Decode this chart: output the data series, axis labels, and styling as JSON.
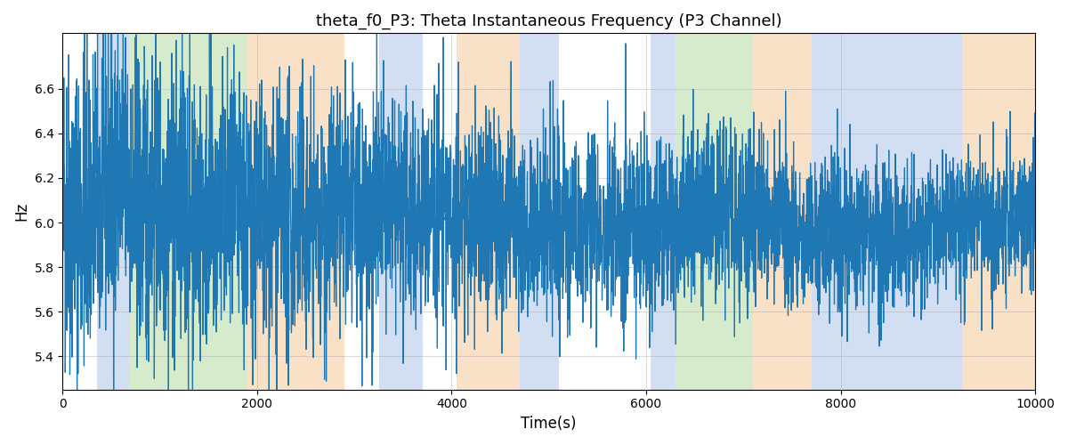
{
  "title": "theta_f0_P3: Theta Instantaneous Frequency (P3 Channel)",
  "xlabel": "Time(s)",
  "ylabel": "Hz",
  "xlim": [
    0,
    10000
  ],
  "ylim": [
    5.25,
    6.85
  ],
  "yticks": [
    5.4,
    5.6,
    5.8,
    6.0,
    6.2,
    6.4,
    6.6
  ],
  "xticks": [
    0,
    2000,
    4000,
    6000,
    8000,
    10000
  ],
  "line_color": "#1f77b4",
  "line_width": 0.9,
  "background_color": "#ffffff",
  "grid_color": "#aaaaaa",
  "grid_alpha": 0.5,
  "figsize": [
    12,
    5
  ],
  "dpi": 100,
  "seed": 42,
  "n_points": 5000,
  "colored_bands": [
    {
      "xmin": 350,
      "xmax": 680,
      "color": "#aec6e8",
      "alpha": 0.55
    },
    {
      "xmin": 680,
      "xmax": 1900,
      "color": "#b5d9a2",
      "alpha": 0.55
    },
    {
      "xmin": 1900,
      "xmax": 2900,
      "color": "#f5c99a",
      "alpha": 0.55
    },
    {
      "xmin": 3250,
      "xmax": 3700,
      "color": "#aec6e8",
      "alpha": 0.55
    },
    {
      "xmin": 4050,
      "xmax": 4700,
      "color": "#f5c99a",
      "alpha": 0.55
    },
    {
      "xmin": 4700,
      "xmax": 5100,
      "color": "#aec6e8",
      "alpha": 0.55
    },
    {
      "xmin": 6050,
      "xmax": 6300,
      "color": "#aec6e8",
      "alpha": 0.55
    },
    {
      "xmin": 6300,
      "xmax": 7100,
      "color": "#b5d9a2",
      "alpha": 0.55
    },
    {
      "xmin": 7100,
      "xmax": 7700,
      "color": "#f5c99a",
      "alpha": 0.55
    },
    {
      "xmin": 7700,
      "xmax": 8050,
      "color": "#aec6e8",
      "alpha": 0.55
    },
    {
      "xmin": 8050,
      "xmax": 9250,
      "color": "#aec6e8",
      "alpha": 0.55
    },
    {
      "xmin": 9250,
      "xmax": 10000,
      "color": "#f5c99a",
      "alpha": 0.55
    }
  ]
}
